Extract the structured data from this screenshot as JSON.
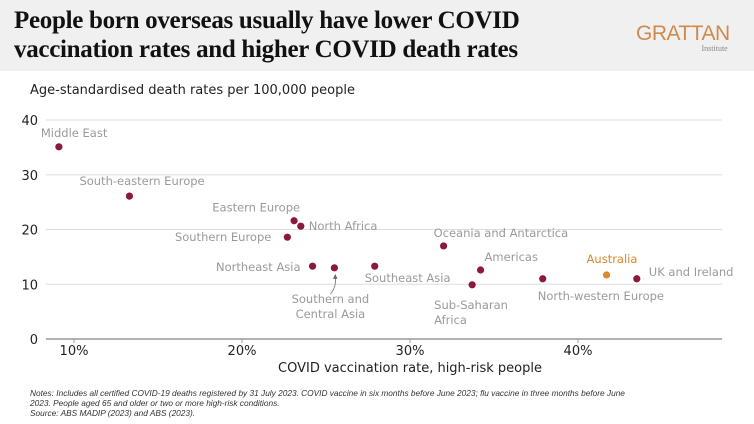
{
  "header": {
    "title_line1": "People born overseas usually have lower COVID",
    "title_line2": "vaccination rates and higher COVID death rates",
    "logo_main": "GRATTAN",
    "logo_sub": "Institute"
  },
  "chart_data": {
    "type": "scatter",
    "title": "People born overseas usually have lower COVID vaccination rates and higher COVID death rates",
    "ylabel": "Age-standardised death rates per 100,000 people",
    "xlabel": "COVID vaccination rate, high-risk people",
    "xlim": [
      9,
      48
    ],
    "ylim": [
      0,
      40
    ],
    "xticks": [
      10,
      20,
      30,
      40
    ],
    "xtick_labels": [
      "10%",
      "20%",
      "30%",
      "40%"
    ],
    "yticks": [
      0,
      10,
      20,
      30,
      40
    ],
    "ytick_labels": [
      "0",
      "10",
      "20",
      "30",
      "40"
    ],
    "grid": true,
    "colors": {
      "default": "#8b1a3a",
      "highlight": "#d8892a",
      "label": "#9a9a9a",
      "grid": "#dddddd",
      "axis": "#999999"
    },
    "points": [
      {
        "name": "Middle East",
        "x": 9.1,
        "y": 35.1,
        "highlight": false
      },
      {
        "name": "South-eastern Europe",
        "x": 13.3,
        "y": 26.1,
        "highlight": false
      },
      {
        "name": "Eastern Europe",
        "x": 23.1,
        "y": 21.6,
        "highlight": false
      },
      {
        "name": "North Africa",
        "x": 23.5,
        "y": 20.6,
        "highlight": false
      },
      {
        "name": "Southern Europe",
        "x": 22.7,
        "y": 18.6,
        "highlight": false
      },
      {
        "name": "Northeast Asia",
        "x": 24.2,
        "y": 13.3,
        "highlight": false
      },
      {
        "name": "Southern and Central Asia",
        "x": 25.5,
        "y": 13.0,
        "highlight": false
      },
      {
        "name": "Southeast Asia",
        "x": 27.9,
        "y": 13.3,
        "highlight": false
      },
      {
        "name": "Oceania and Antarctica",
        "x": 32.0,
        "y": 17.0,
        "highlight": false
      },
      {
        "name": "Americas",
        "x": 34.2,
        "y": 12.6,
        "highlight": false
      },
      {
        "name": "Sub-Saharan Africa",
        "x": 33.7,
        "y": 9.9,
        "highlight": false
      },
      {
        "name": "North-western Europe",
        "x": 37.9,
        "y": 11.0,
        "highlight": false
      },
      {
        "name": "Australia",
        "x": 41.7,
        "y": 11.7,
        "highlight": true
      },
      {
        "name": "UK and Ireland",
        "x": 43.5,
        "y": 11.0,
        "highlight": false
      }
    ],
    "annotations": [
      {
        "text": [
          "Middle East"
        ]
      },
      {
        "text": [
          "South-eastern Europe"
        ]
      },
      {
        "text": [
          "Eastern Europe"
        ]
      },
      {
        "text": [
          "North Africa"
        ]
      },
      {
        "text": [
          "Southern Europe"
        ]
      },
      {
        "text": [
          "Northeast Asia"
        ]
      },
      {
        "text": [
          "Southern and",
          "Central Asia"
        ]
      },
      {
        "text": [
          "Southeast Asia"
        ]
      },
      {
        "text": [
          "Oceania and Antarctica"
        ]
      },
      {
        "text": [
          "Americas"
        ]
      },
      {
        "text": [
          "Sub-Saharan",
          "Africa"
        ]
      },
      {
        "text": [
          "North-western Europe"
        ]
      },
      {
        "text": [
          "Australia"
        ]
      },
      {
        "text": [
          "UK and Ireland"
        ]
      }
    ]
  },
  "notes": {
    "line1": "Notes: Includes all certified COVID-19 deaths registered by 31 July 2023. COVID vaccine in six months before June 2023; flu vaccine in three months before June",
    "line2": "2023. People aged 65 and older or two or more high-risk conditions.",
    "source": "Source: ABS MADIP (2023) and ABS (2023)."
  }
}
